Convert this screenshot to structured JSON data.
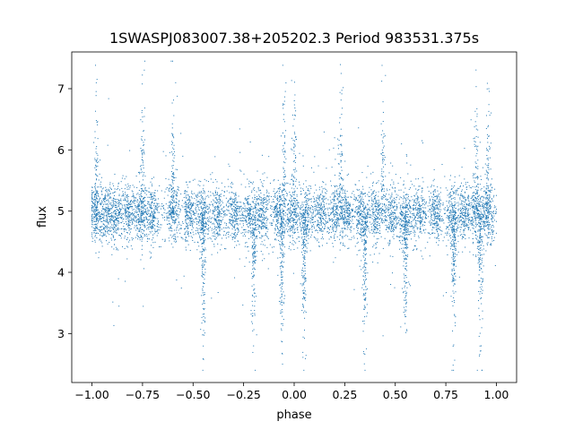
{
  "chart_data": {
    "type": "scatter",
    "title": "1SWASPJ083007.38+205202.3 Period 983531.375s",
    "xlabel": "phase",
    "ylabel": "flux",
    "xlim": [
      -1.1,
      1.1
    ],
    "ylim": [
      2.2,
      7.6
    ],
    "x_ticks": [
      -1.0,
      -0.75,
      -0.5,
      -0.25,
      0.0,
      0.25,
      0.5,
      0.75,
      1.0
    ],
    "x_tick_labels": [
      "−1.00",
      "−0.75",
      "−0.50",
      "−0.25",
      "0.00",
      "0.25",
      "0.50",
      "0.75",
      "1.00"
    ],
    "y_ticks": [
      3,
      4,
      5,
      6,
      7
    ],
    "y_tick_labels": [
      "3",
      "4",
      "5",
      "6",
      "7"
    ],
    "grid": false,
    "marker_color": "#1f77b4",
    "x_data_range": [
      -1.0,
      1.0
    ],
    "baseline_flux": 4.95,
    "baseline_scatter": 0.22,
    "flux_min": 2.4,
    "flux_max": 7.45,
    "observation_clusters_phase": [
      -0.98,
      -0.93,
      -0.88,
      -0.82,
      -0.76,
      -0.7,
      -0.6,
      -0.52,
      -0.45,
      -0.38,
      -0.3,
      -0.22,
      -0.16,
      -0.08,
      -0.01,
      0.06,
      0.13,
      0.2,
      0.26,
      0.33,
      0.4,
      0.48,
      0.55,
      0.62,
      0.7,
      0.78,
      0.84,
      0.9,
      0.96
    ],
    "deep_dip_phases": [
      -0.45,
      -0.2,
      -0.06,
      0.05,
      0.35,
      0.55,
      0.79,
      0.92
    ],
    "flare_phases": [
      -0.98,
      -0.75,
      -0.6,
      -0.05,
      0.0,
      0.23,
      0.44,
      0.9,
      0.96
    ]
  }
}
